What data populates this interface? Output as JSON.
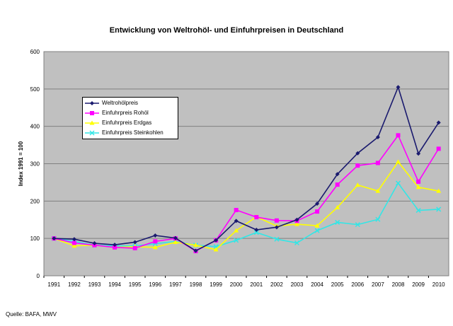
{
  "chart_data": {
    "type": "line",
    "title": "Entwicklung von Weltrohöl- und Einfuhrpreisen in Deutschland",
    "xlabel": "",
    "ylabel": "Index 1991 = 100",
    "ylim": [
      0,
      600
    ],
    "yticks": [
      0,
      100,
      200,
      300,
      400,
      500,
      600
    ],
    "grid": true,
    "legend_position": "top-left",
    "source": "Quelle: BAFA, MWV",
    "categories": [
      "1991",
      "1992",
      "1993",
      "1994",
      "1995",
      "1996",
      "1997",
      "1998",
      "1999",
      "2000",
      "2001",
      "2002",
      "2003",
      "2004",
      "2005",
      "2006",
      "2007",
      "2008",
      "2009",
      "2010"
    ],
    "series": [
      {
        "name": "Weltrohölpreis",
        "color": "#1a1a6e",
        "marker": "diamond",
        "values": [
          100,
          98,
          87,
          83,
          90,
          108,
          101,
          67,
          95,
          147,
          123,
          130,
          150,
          193,
          272,
          328,
          371,
          505,
          327,
          410
        ]
      },
      {
        "name": "Einfuhrpreis Rohöl",
        "color": "#ff00ff",
        "marker": "square",
        "values": [
          100,
          88,
          82,
          76,
          74,
          92,
          100,
          66,
          95,
          176,
          157,
          148,
          147,
          172,
          244,
          295,
          302,
          376,
          252,
          340
        ]
      },
      {
        "name": "Einfuhrpreis Erdgas",
        "color": "#ffff00",
        "marker": "triangle",
        "values": [
          100,
          80,
          82,
          76,
          78,
          76,
          90,
          82,
          70,
          121,
          158,
          133,
          138,
          134,
          183,
          243,
          227,
          305,
          237,
          227
        ]
      },
      {
        "name": "Einfuhrpreis Steinkohlen",
        "color": "#33e6e6",
        "marker": "x",
        "values": [
          100,
          92,
          82,
          80,
          80,
          86,
          92,
          82,
          78,
          95,
          116,
          98,
          88,
          121,
          143,
          137,
          151,
          248,
          175,
          178
        ]
      }
    ]
  }
}
